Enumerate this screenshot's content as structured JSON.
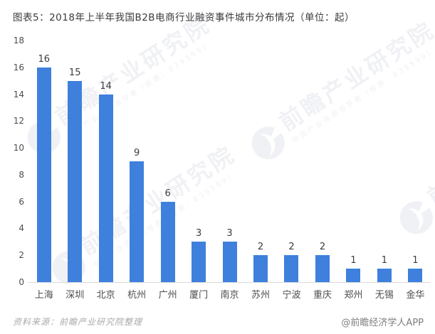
{
  "header": {
    "title": "图表5：2018年上半年我国B2B电商行业融资事件城市分布情况（单位：起）"
  },
  "chart_data": {
    "type": "bar",
    "title": "图表5：2018年上半年我国B2B电商行业融资事件城市分布情况（单位：起）",
    "unit": "起",
    "categories": [
      "上海",
      "深圳",
      "北京",
      "杭州",
      "广州",
      "厦门",
      "南京",
      "苏州",
      "宁波",
      "重庆",
      "郑州",
      "无锡",
      "金华"
    ],
    "values": [
      16,
      15,
      14,
      9,
      6,
      3,
      3,
      2,
      2,
      2,
      1,
      1,
      1
    ],
    "ylim": [
      0,
      18
    ],
    "yticks": [
      0,
      2,
      4,
      6,
      8,
      10,
      12,
      14,
      16,
      18
    ],
    "xlabel": "",
    "ylabel": "",
    "grid": false,
    "legend": "none",
    "value_labels": true
  },
  "footer": {
    "source": "资料来源：前瞻产业研究院整理",
    "credit": "@前瞻经济学人APP"
  },
  "watermark": {
    "text": "前瞻产业研究院",
    "subtext": "中国产业咨询领导者（股票：839599）"
  },
  "colors": {
    "bar": "#3E80DC",
    "title": "#3A3A3A",
    "tick": "#4D4D4D",
    "value": "#3C3C3C",
    "baseline": "#D9D9D9",
    "source": "#AAAAAA",
    "credit": "#7D7D7D",
    "watermark": "#F0F1F5"
  }
}
